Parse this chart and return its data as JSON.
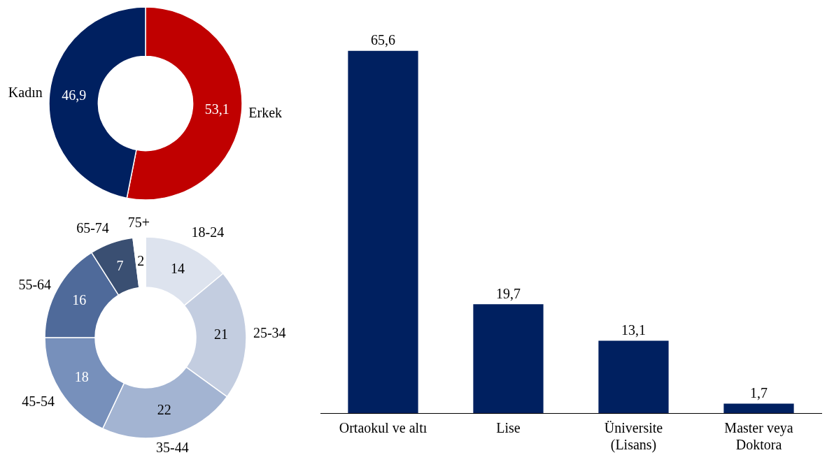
{
  "chart_data": [
    {
      "type": "donut",
      "categories": [
        "Erkek",
        "Kadın"
      ],
      "values": [
        53.1,
        46.9
      ],
      "value_labels": [
        "53,1",
        "46,9"
      ],
      "colors": [
        "#c00000",
        "#002060"
      ],
      "legend": false
    },
    {
      "type": "donut",
      "categories": [
        "18-24",
        "25-34",
        "35-44",
        "45-54",
        "55-64",
        "65-74",
        "75+"
      ],
      "values": [
        14,
        21,
        22,
        18,
        16,
        7,
        2
      ],
      "colors": [
        "#dde3ee",
        "#c3cde0",
        "#a3b4d2",
        "#7790bb",
        "#4f6a9a",
        "#3a4f72",
        "#ffffff"
      ],
      "data_labels": true,
      "legend": false
    },
    {
      "type": "bar",
      "categories": [
        "Ortaokul ve altı",
        "Lise",
        "Üniversite (Lisans)",
        "Master veya Doktora"
      ],
      "values": [
        65.6,
        19.7,
        13.1,
        1.7
      ],
      "value_labels": [
        "65,6",
        "19,7",
        "13,1",
        "1,7"
      ],
      "color": "#002060",
      "legend": false
    }
  ]
}
